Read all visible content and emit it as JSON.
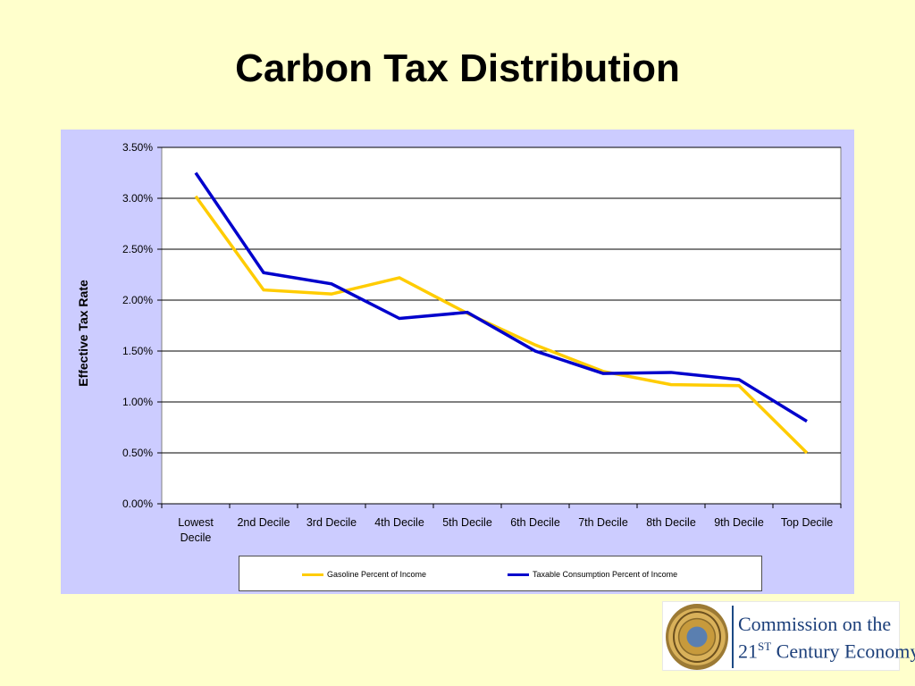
{
  "slide": {
    "title": "Carbon Tax Distribution"
  },
  "colors": {
    "background": "#ffffcc",
    "chart_background": "#ccccff",
    "plot_background": "#ffffff",
    "gasoline_line": "#ffcc00",
    "consumption_line": "#0000cc"
  },
  "logo": {
    "line1": "Commission on the",
    "line2_prefix": "21",
    "line2_sup": "ST",
    "line2_suffix": " Century Economy",
    "seal_icon": "california-state-seal-icon"
  },
  "chart_data": {
    "type": "line",
    "title": "",
    "xlabel": "",
    "ylabel": "Effective Tax Rate",
    "categories": [
      "Lowest Decile",
      "2nd Decile",
      "3rd Decile",
      "4th Decile",
      "5th Decile",
      "6th Decile",
      "7th Decile",
      "8th Decile",
      "9th Decile",
      "Top Decile"
    ],
    "category_lines": [
      [
        "Lowest",
        "Decile"
      ],
      [
        "2nd Decile"
      ],
      [
        "3rd Decile"
      ],
      [
        "4th Decile"
      ],
      [
        "5th Decile"
      ],
      [
        "6th Decile"
      ],
      [
        "7th Decile"
      ],
      [
        "8th Decile"
      ],
      [
        "9th Decile"
      ],
      [
        "Top Decile"
      ]
    ],
    "yticks": [
      "0.00%",
      "0.50%",
      "1.00%",
      "1.50%",
      "2.00%",
      "2.50%",
      "3.00%",
      "3.50%"
    ],
    "ylim": [
      0,
      3.5
    ],
    "y_unit": "%",
    "grid": true,
    "legend_position": "bottom",
    "series": [
      {
        "name": "Gasoline Percent of Income",
        "color": "#ffcc00",
        "values": [
          3.02,
          2.1,
          2.06,
          2.22,
          1.87,
          1.56,
          1.3,
          1.17,
          1.16,
          0.5
        ]
      },
      {
        "name": "Taxable Consumption Percent of Income",
        "color": "#0000cc",
        "values": [
          3.25,
          2.27,
          2.16,
          1.82,
          1.88,
          1.5,
          1.28,
          1.29,
          1.22,
          0.81
        ]
      }
    ]
  }
}
